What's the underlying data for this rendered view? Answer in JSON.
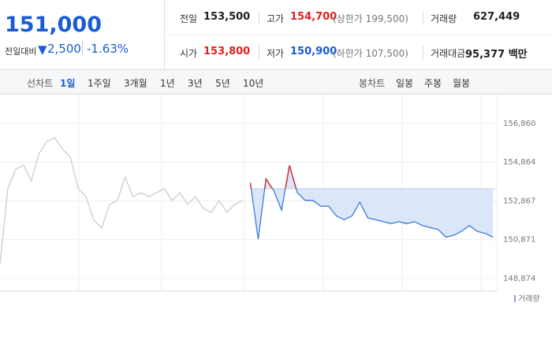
{
  "header": {
    "price": "151,000",
    "change_label": "전일대비",
    "change": "2,500",
    "change_rate": "-1.63%",
    "cells": [
      {
        "label": "전일",
        "value": "153,500"
      },
      {
        "label": "고가",
        "value": "154,700",
        "note": "(상한가 199,500)"
      },
      {
        "label": "거래량",
        "value": "627,449"
      },
      {
        "label": "시가",
        "value": "153,800"
      },
      {
        "label": "저가",
        "value": "150,900",
        "note": "(하한가 107,500)"
      },
      {
        "label": "거래대금",
        "value": "95,377 백만"
      }
    ]
  },
  "tabs": {
    "line_label": "선차트",
    "line": [
      "1일",
      "1주일",
      "3개월",
      "1년",
      "3년",
      "5년",
      "10년"
    ],
    "candle_label": "봉차트",
    "candle": [
      "일봉",
      "주봉",
      "월봉"
    ]
  },
  "chart_data": {
    "type": "line",
    "legend": "거래량",
    "reference_line": 153500,
    "ylim": [
      148225,
      158035
    ],
    "yticks": [
      {
        "value": 148874,
        "label": "148,874"
      },
      {
        "value": 150871,
        "label": "150,871"
      },
      {
        "value": 152867,
        "label": "152,867"
      },
      {
        "value": 154864,
        "label": "154,864"
      },
      {
        "value": 156860,
        "label": "156,860"
      }
    ],
    "series": [
      {
        "color": "#cccccc",
        "values": [
          149650,
          153500,
          154510,
          154710,
          153900,
          155320,
          155930,
          156130,
          155520,
          155120,
          153500,
          153090,
          151880,
          151470,
          152690,
          152890,
          154100,
          153090,
          153290,
          153090,
          153290,
          153500,
          152890,
          153290,
          152690,
          153090,
          152480,
          152280,
          152890,
          152280,
          152690,
          152890,
          null,
          null,
          null,
          null,
          null,
          null,
          null,
          null,
          null,
          null,
          null,
          null,
          null,
          null,
          null,
          null,
          null,
          null,
          null,
          null,
          null,
          null,
          null,
          null,
          null,
          null,
          null,
          null,
          null,
          null,
          null,
          null
        ]
      },
      {
        "color": "#3b7ad9",
        "values": [
          null,
          null,
          null,
          null,
          null,
          null,
          null,
          null,
          null,
          null,
          null,
          null,
          null,
          null,
          null,
          null,
          null,
          null,
          null,
          null,
          null,
          null,
          null,
          null,
          null,
          null,
          null,
          null,
          null,
          null,
          null,
          null,
          153800,
          150900,
          154000,
          153400,
          152400,
          154700,
          153300,
          152900,
          152900,
          152600,
          152600,
          152100,
          151900,
          152100,
          152800,
          152000,
          151900,
          151800,
          151700,
          151800,
          151700,
          151800,
          151600,
          151500,
          151400,
          151000,
          151100,
          151300,
          151600,
          151300,
          151200,
          151000
        ]
      }
    ]
  }
}
